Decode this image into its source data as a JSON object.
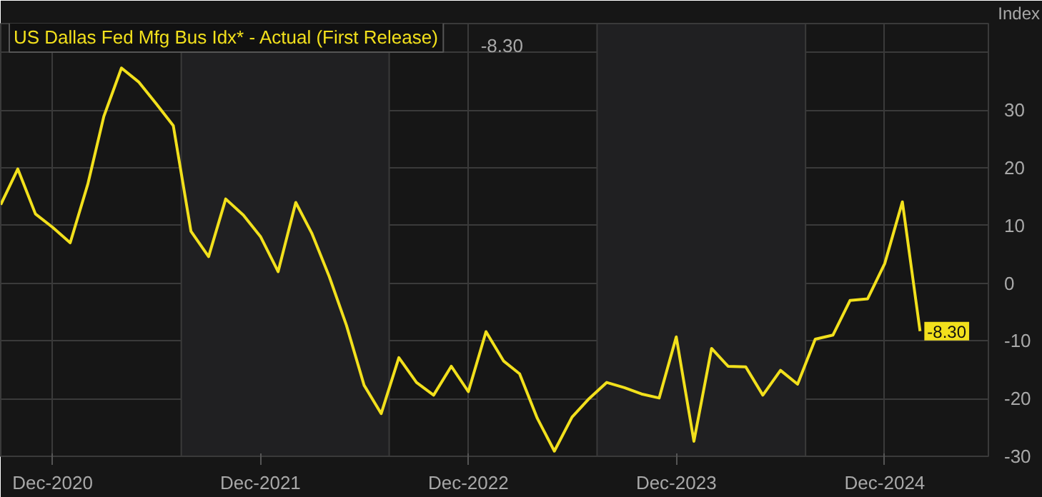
{
  "chart_data": {
    "type": "line",
    "ylabel": "Index",
    "x": [
      "2020-09",
      "2020-10",
      "2020-11",
      "2020-12",
      "2021-01",
      "2021-02",
      "2021-03",
      "2021-04",
      "2021-05",
      "2021-06",
      "2021-07",
      "2021-08",
      "2021-09",
      "2021-10",
      "2021-11",
      "2021-12",
      "2022-01",
      "2022-02",
      "2022-03",
      "2022-04",
      "2022-05",
      "2022-06",
      "2022-07",
      "2022-08",
      "2022-09",
      "2022-10",
      "2022-11",
      "2022-12",
      "2023-01",
      "2023-02",
      "2023-03",
      "2023-04",
      "2023-05",
      "2023-06",
      "2023-07",
      "2023-08",
      "2023-09",
      "2023-10",
      "2023-11",
      "2023-12",
      "2024-01",
      "2024-02",
      "2024-03",
      "2024-04",
      "2024-05",
      "2024-06",
      "2024-07",
      "2024-08",
      "2024-09",
      "2024-10",
      "2024-11",
      "2024-12",
      "2025-01",
      "2025-02"
    ],
    "series": [
      {
        "name": "US Dallas Fed Mfg Bus Idx* - Actual (First Release)",
        "color": "#f2e01c",
        "values": [
          13.6,
          19.8,
          12.0,
          9.7,
          7.0,
          17.2,
          28.9,
          37.3,
          34.9,
          31.1,
          27.3,
          9.0,
          4.6,
          14.6,
          11.8,
          8.1,
          2.0,
          14.0,
          8.7,
          1.1,
          -7.3,
          -17.7,
          -22.6,
          -12.9,
          -17.2,
          -19.4,
          -14.4,
          -18.8,
          -8.4,
          -13.5,
          -15.7,
          -23.4,
          -29.1,
          -23.2,
          -20.0,
          -17.2,
          -18.1,
          -19.2,
          -19.9,
          -9.3,
          -27.4,
          -11.3,
          -14.4,
          -14.5,
          -19.4,
          -15.1,
          -17.5,
          -9.7,
          -9.0,
          -3.0,
          -2.7,
          3.4,
          14.1,
          -8.3
        ],
        "value_labels": [
          null,
          null,
          null,
          null,
          null,
          null,
          null,
          null,
          null,
          null,
          null,
          null,
          null,
          null,
          null,
          null,
          null,
          null,
          null,
          null,
          null,
          null,
          null,
          null,
          null,
          null,
          null,
          null,
          null,
          null,
          null,
          null,
          null,
          null,
          null,
          null,
          null,
          null,
          null,
          null,
          null,
          null,
          null,
          null,
          null,
          null,
          null,
          null,
          null,
          null,
          null,
          null,
          null,
          "-8.30"
        ]
      }
    ],
    "xlim": [
      "2020-09",
      "2025-06"
    ],
    "xticks": [
      {
        "value": "2020-12",
        "label": "Dec-2020"
      },
      {
        "value": "2021-12",
        "label": "Dec-2021"
      },
      {
        "value": "2022-12",
        "label": "Dec-2022"
      },
      {
        "value": "2023-12",
        "label": "Dec-2023"
      },
      {
        "value": "2024-12",
        "label": "Dec-2024"
      }
    ],
    "ylim": [
      -30,
      45
    ],
    "yticks": [
      -30,
      -20,
      -10,
      0,
      10,
      20,
      30,
      {
        "value": 40,
        "label": null
      }
    ],
    "grid": true,
    "line_style": "solid",
    "bands": [
      {
        "axis": "x",
        "from": "2021-07-15",
        "to": "2022-07-15",
        "label": null,
        "color": "#202022"
      },
      {
        "axis": "x",
        "from": "2023-07-15",
        "to": "2024-07-15",
        "label": null,
        "color": "#202022"
      }
    ],
    "annotations": [
      "-8.30"
    ]
  }
}
